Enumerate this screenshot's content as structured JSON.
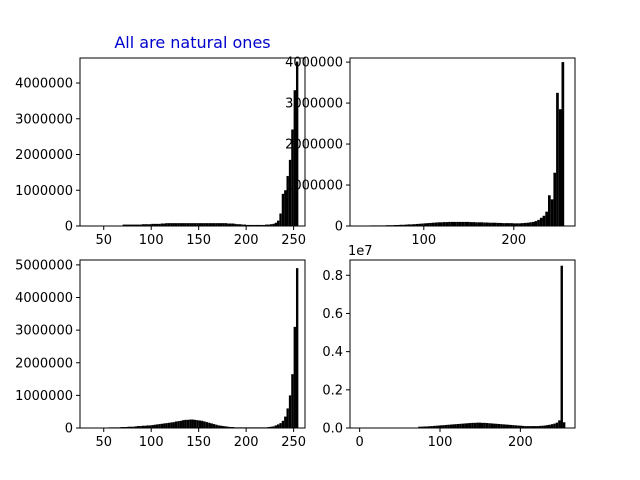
{
  "colors": {
    "bars": "#000000",
    "title": "#0000cc",
    "background": "#ffffff"
  },
  "chart_data": [
    {
      "type": "bar",
      "title": "All are natural ones",
      "xlim": [
        25,
        262
      ],
      "ylim": [
        0,
        4700000
      ],
      "xticks": [
        50,
        100,
        150,
        200,
        250
      ],
      "yticks": [
        0,
        1000000,
        2000000,
        3000000,
        4000000
      ],
      "ytick_labels": [
        "0",
        "1000000",
        "2000000",
        "3000000",
        "4000000"
      ],
      "bin_width": 2.5,
      "x": [
        70,
        72.5,
        75,
        77.5,
        80,
        82.5,
        85,
        87.5,
        90,
        92.5,
        95,
        97.5,
        100,
        102.5,
        105,
        107.5,
        110,
        112.5,
        115,
        117.5,
        120,
        122.5,
        125,
        127.5,
        130,
        132.5,
        135,
        137.5,
        140,
        142.5,
        145,
        147.5,
        150,
        152.5,
        155,
        157.5,
        160,
        162.5,
        165,
        167.5,
        170,
        172.5,
        175,
        177.5,
        180,
        182.5,
        185,
        187.5,
        190,
        192.5,
        195,
        197.5,
        200,
        202.5,
        205,
        207.5,
        210,
        212.5,
        215,
        217.5,
        220,
        222.5,
        225,
        227.5,
        230,
        232.5,
        235,
        237.5,
        240,
        242.5,
        245,
        247.5,
        250,
        252.5
      ],
      "values": [
        40000,
        40000,
        40000,
        40000,
        40000,
        40000,
        40000,
        40000,
        50000,
        50000,
        50000,
        50000,
        60000,
        60000,
        60000,
        60000,
        70000,
        70000,
        80000,
        80000,
        80000,
        80000,
        80000,
        80000,
        80000,
        80000,
        80000,
        80000,
        80000,
        80000,
        80000,
        80000,
        80000,
        80000,
        80000,
        80000,
        80000,
        80000,
        80000,
        80000,
        80000,
        80000,
        80000,
        80000,
        70000,
        70000,
        70000,
        60000,
        50000,
        50000,
        40000,
        40000,
        30000,
        30000,
        30000,
        30000,
        30000,
        30000,
        30000,
        30000,
        40000,
        40000,
        50000,
        60000,
        90000,
        150000,
        350000,
        900000,
        1000000,
        1400000,
        1850000,
        2700000,
        3800000,
        4600000
      ]
    },
    {
      "type": "bar",
      "title": "",
      "xlim": [
        18,
        268
      ],
      "ylim": [
        0,
        4100000
      ],
      "xticks": [
        100,
        200
      ],
      "yticks": [
        0,
        1000000,
        2000000,
        3000000,
        4000000
      ],
      "ytick_labels": [
        "0",
        "1000000",
        "2000000",
        "3000000",
        "4000000"
      ],
      "bin_width": 3,
      "x": [
        40,
        43,
        46,
        49,
        52,
        55,
        58,
        61,
        64,
        67,
        70,
        73,
        76,
        79,
        82,
        85,
        88,
        91,
        94,
        97,
        100,
        103,
        106,
        109,
        112,
        115,
        118,
        121,
        124,
        127,
        130,
        133,
        136,
        139,
        142,
        145,
        148,
        151,
        154,
        157,
        160,
        163,
        166,
        169,
        172,
        175,
        178,
        181,
        184,
        187,
        190,
        193,
        196,
        199,
        202,
        205,
        208,
        211,
        214,
        217,
        220,
        223,
        226,
        229,
        232,
        235,
        238,
        241,
        244,
        247,
        250,
        253
      ],
      "values": [
        15000,
        15000,
        15000,
        15000,
        15000,
        15000,
        20000,
        20000,
        20000,
        25000,
        25000,
        30000,
        30000,
        35000,
        40000,
        40000,
        45000,
        50000,
        55000,
        60000,
        65000,
        70000,
        75000,
        80000,
        85000,
        90000,
        90000,
        95000,
        95000,
        100000,
        100000,
        100000,
        100000,
        100000,
        100000,
        100000,
        100000,
        95000,
        95000,
        90000,
        90000,
        90000,
        85000,
        85000,
        80000,
        80000,
        80000,
        75000,
        75000,
        70000,
        70000,
        70000,
        70000,
        65000,
        65000,
        65000,
        70000,
        75000,
        80000,
        90000,
        100000,
        120000,
        150000,
        200000,
        250000,
        350000,
        750000,
        650000,
        1300000,
        3250000,
        2850000,
        4000000
      ]
    },
    {
      "type": "bar",
      "title": "",
      "xlim": [
        25,
        262
      ],
      "ylim": [
        0,
        5150000
      ],
      "xticks": [
        50,
        100,
        150,
        200,
        250
      ],
      "yticks": [
        0,
        1000000,
        2000000,
        3000000,
        4000000,
        5000000
      ],
      "ytick_labels": [
        "0",
        "1000000",
        "2000000",
        "3000000",
        "4000000",
        "5000000"
      ],
      "bin_width": 2.5,
      "x": [
        55,
        57.5,
        60,
        62.5,
        65,
        67.5,
        70,
        72.5,
        75,
        77.5,
        80,
        82.5,
        85,
        87.5,
        90,
        92.5,
        95,
        97.5,
        100,
        102.5,
        105,
        107.5,
        110,
        112.5,
        115,
        117.5,
        120,
        122.5,
        125,
        127.5,
        130,
        132.5,
        135,
        137.5,
        140,
        142.5,
        145,
        147.5,
        150,
        152.5,
        155,
        157.5,
        160,
        162.5,
        165,
        167.5,
        170,
        172.5,
        175,
        177.5,
        180,
        182.5,
        185,
        187.5,
        190,
        192.5,
        195,
        197.5,
        200,
        202.5,
        205,
        207.5,
        210,
        212.5,
        215,
        217.5,
        220,
        222.5,
        225,
        227.5,
        230,
        232.5,
        235,
        237.5,
        240,
        242.5,
        245,
        247.5,
        250,
        252.5
      ],
      "values": [
        20000,
        20000,
        20000,
        20000,
        20000,
        30000,
        30000,
        30000,
        40000,
        40000,
        40000,
        50000,
        60000,
        60000,
        70000,
        70000,
        80000,
        80000,
        90000,
        100000,
        110000,
        120000,
        130000,
        140000,
        150000,
        160000,
        170000,
        180000,
        200000,
        210000,
        220000,
        240000,
        250000,
        250000,
        260000,
        260000,
        250000,
        240000,
        230000,
        220000,
        200000,
        180000,
        160000,
        140000,
        120000,
        100000,
        80000,
        70000,
        60000,
        50000,
        40000,
        30000,
        30000,
        20000,
        20000,
        20000,
        20000,
        20000,
        20000,
        20000,
        20000,
        20000,
        20000,
        20000,
        20000,
        20000,
        20000,
        30000,
        40000,
        50000,
        80000,
        110000,
        150000,
        220000,
        350000,
        600000,
        1000000,
        1650000,
        3100000,
        4900000
      ]
    },
    {
      "type": "bar",
      "title": "",
      "xlim": [
        -12,
        268
      ],
      "ylim": [
        0,
        8800000
      ],
      "xticks": [
        0,
        100,
        200
      ],
      "yticks": [
        0,
        2000000,
        4000000,
        6000000,
        8000000
      ],
      "ytick_labels": [
        "0.0",
        "0.2",
        "0.4",
        "0.6",
        "0.8"
      ],
      "offset_label": "1e7",
      "bin_width": 3,
      "x": [
        73,
        76,
        79,
        82,
        85,
        88,
        91,
        94,
        97,
        100,
        103,
        106,
        109,
        112,
        115,
        118,
        121,
        124,
        127,
        130,
        133,
        136,
        139,
        142,
        145,
        148,
        151,
        154,
        157,
        160,
        163,
        166,
        169,
        172,
        175,
        178,
        181,
        184,
        187,
        190,
        193,
        196,
        199,
        202,
        205,
        208,
        211,
        214,
        217,
        220,
        223,
        226,
        229,
        232,
        235,
        238,
        241,
        244,
        247,
        250,
        253
      ],
      "values": [
        70000,
        70000,
        80000,
        80000,
        90000,
        100000,
        110000,
        120000,
        130000,
        140000,
        150000,
        160000,
        170000,
        180000,
        190000,
        200000,
        210000,
        220000,
        230000,
        240000,
        250000,
        260000,
        270000,
        270000,
        280000,
        280000,
        270000,
        270000,
        260000,
        250000,
        240000,
        230000,
        220000,
        210000,
        200000,
        190000,
        180000,
        170000,
        160000,
        150000,
        140000,
        130000,
        120000,
        110000,
        100000,
        100000,
        100000,
        100000,
        100000,
        100000,
        110000,
        120000,
        130000,
        150000,
        170000,
        200000,
        230000,
        280000,
        400000,
        8500000,
        300000
      ]
    }
  ]
}
